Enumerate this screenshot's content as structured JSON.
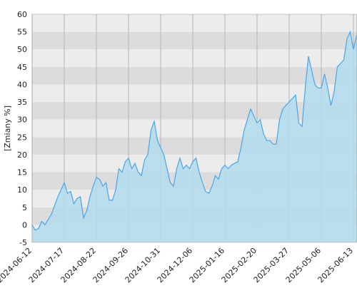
{
  "chart_data": {
    "type": "area",
    "ylabel": "[Zmiany %]",
    "categories": [
      "2024-06-12",
      null,
      null,
      null,
      null,
      null,
      null,
      null,
      null,
      null,
      "2024-07-17",
      null,
      null,
      null,
      null,
      null,
      null,
      null,
      null,
      null,
      "2024-08-22",
      null,
      null,
      null,
      null,
      null,
      null,
      null,
      null,
      null,
      "2024-09-26",
      null,
      null,
      null,
      null,
      null,
      null,
      null,
      null,
      null,
      "2024-10-31",
      null,
      null,
      null,
      null,
      null,
      null,
      null,
      null,
      null,
      "2024-12-06",
      null,
      null,
      null,
      null,
      null,
      null,
      null,
      null,
      null,
      "2025-01-16",
      null,
      null,
      null,
      null,
      null,
      null,
      null,
      null,
      null,
      "2025-02-20",
      null,
      null,
      null,
      null,
      null,
      null,
      null,
      null,
      null,
      "2025-03-27",
      null,
      null,
      null,
      null,
      null,
      null,
      null,
      null,
      null,
      "2025-05-06",
      null,
      null,
      null,
      null,
      null,
      null,
      null,
      null,
      null,
      "2025-06-13",
      null
    ],
    "values": [
      0,
      -1.5,
      -1,
      1,
      0,
      1.5,
      3,
      5.5,
      8,
      10,
      12,
      9,
      9.5,
      6,
      7.5,
      8,
      2,
      4,
      8,
      11,
      13.5,
      13,
      11,
      12,
      7,
      7,
      10,
      16,
      15,
      18,
      19,
      16,
      17.5,
      15,
      14,
      18.5,
      20,
      27,
      29.5,
      24,
      22,
      20,
      16,
      12,
      11,
      16,
      19,
      16,
      17,
      16,
      18,
      19,
      15,
      12,
      9.5,
      9,
      11,
      14,
      13,
      16,
      17,
      16,
      17,
      17.5,
      18,
      22,
      27,
      30,
      33,
      31,
      29,
      30,
      26,
      24,
      24,
      23,
      23,
      30,
      33,
      34,
      35,
      36,
      37,
      29,
      28,
      39,
      48,
      44,
      40,
      39,
      39,
      43,
      39,
      34,
      38,
      45,
      46,
      47,
      53,
      55,
      50,
      54
    ],
    "color": "#4ea3e6",
    "fill_color": "#b3dcef",
    "ylim": [
      -5,
      60
    ],
    "yticks": [
      -5,
      0,
      5,
      10,
      15,
      20,
      25,
      30,
      35,
      40,
      45,
      50,
      55,
      60
    ],
    "grid": true
  }
}
